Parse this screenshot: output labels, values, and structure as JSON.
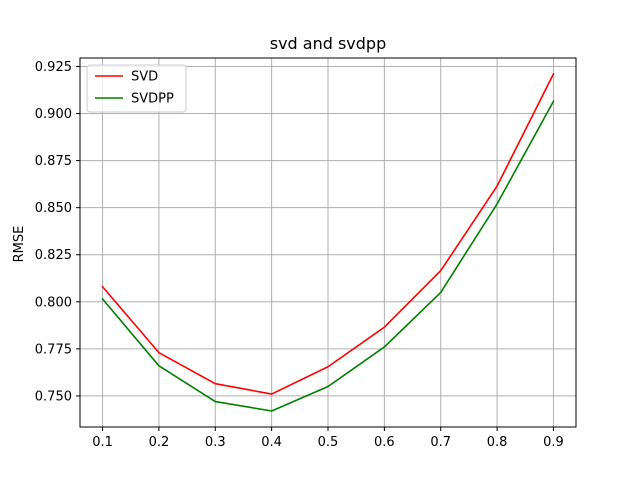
{
  "chart_data": {
    "type": "line",
    "title": "svd and svdpp",
    "xlabel": "",
    "ylabel": "RMSE",
    "x": [
      0.1,
      0.2,
      0.3,
      0.4,
      0.5,
      0.6,
      0.7,
      0.8,
      0.9
    ],
    "x_tick_labels": [
      "0.1",
      "0.2",
      "0.3",
      "0.4",
      "0.5",
      "0.6",
      "0.7",
      "0.8",
      "0.9"
    ],
    "xlim": [
      0.06,
      0.94
    ],
    "ylim": [
      0.7335,
      0.9295
    ],
    "y_ticks": [
      0.75,
      0.775,
      0.8,
      0.825,
      0.85,
      0.875,
      0.9,
      0.925
    ],
    "y_tick_labels": [
      "0.750",
      "0.775",
      "0.800",
      "0.825",
      "0.850",
      "0.875",
      "0.900",
      "0.925"
    ],
    "grid": true,
    "legend_position": "top-left",
    "series": [
      {
        "name": "SVD",
        "color": "#ff0000",
        "values": [
          0.808,
          0.773,
          0.7565,
          0.751,
          0.7655,
          0.7865,
          0.8165,
          0.8615,
          0.921
        ]
      },
      {
        "name": "SVDPP",
        "color": "#008000",
        "values": [
          0.8015,
          0.766,
          0.747,
          0.742,
          0.755,
          0.776,
          0.805,
          0.852,
          0.9065
        ]
      }
    ]
  }
}
